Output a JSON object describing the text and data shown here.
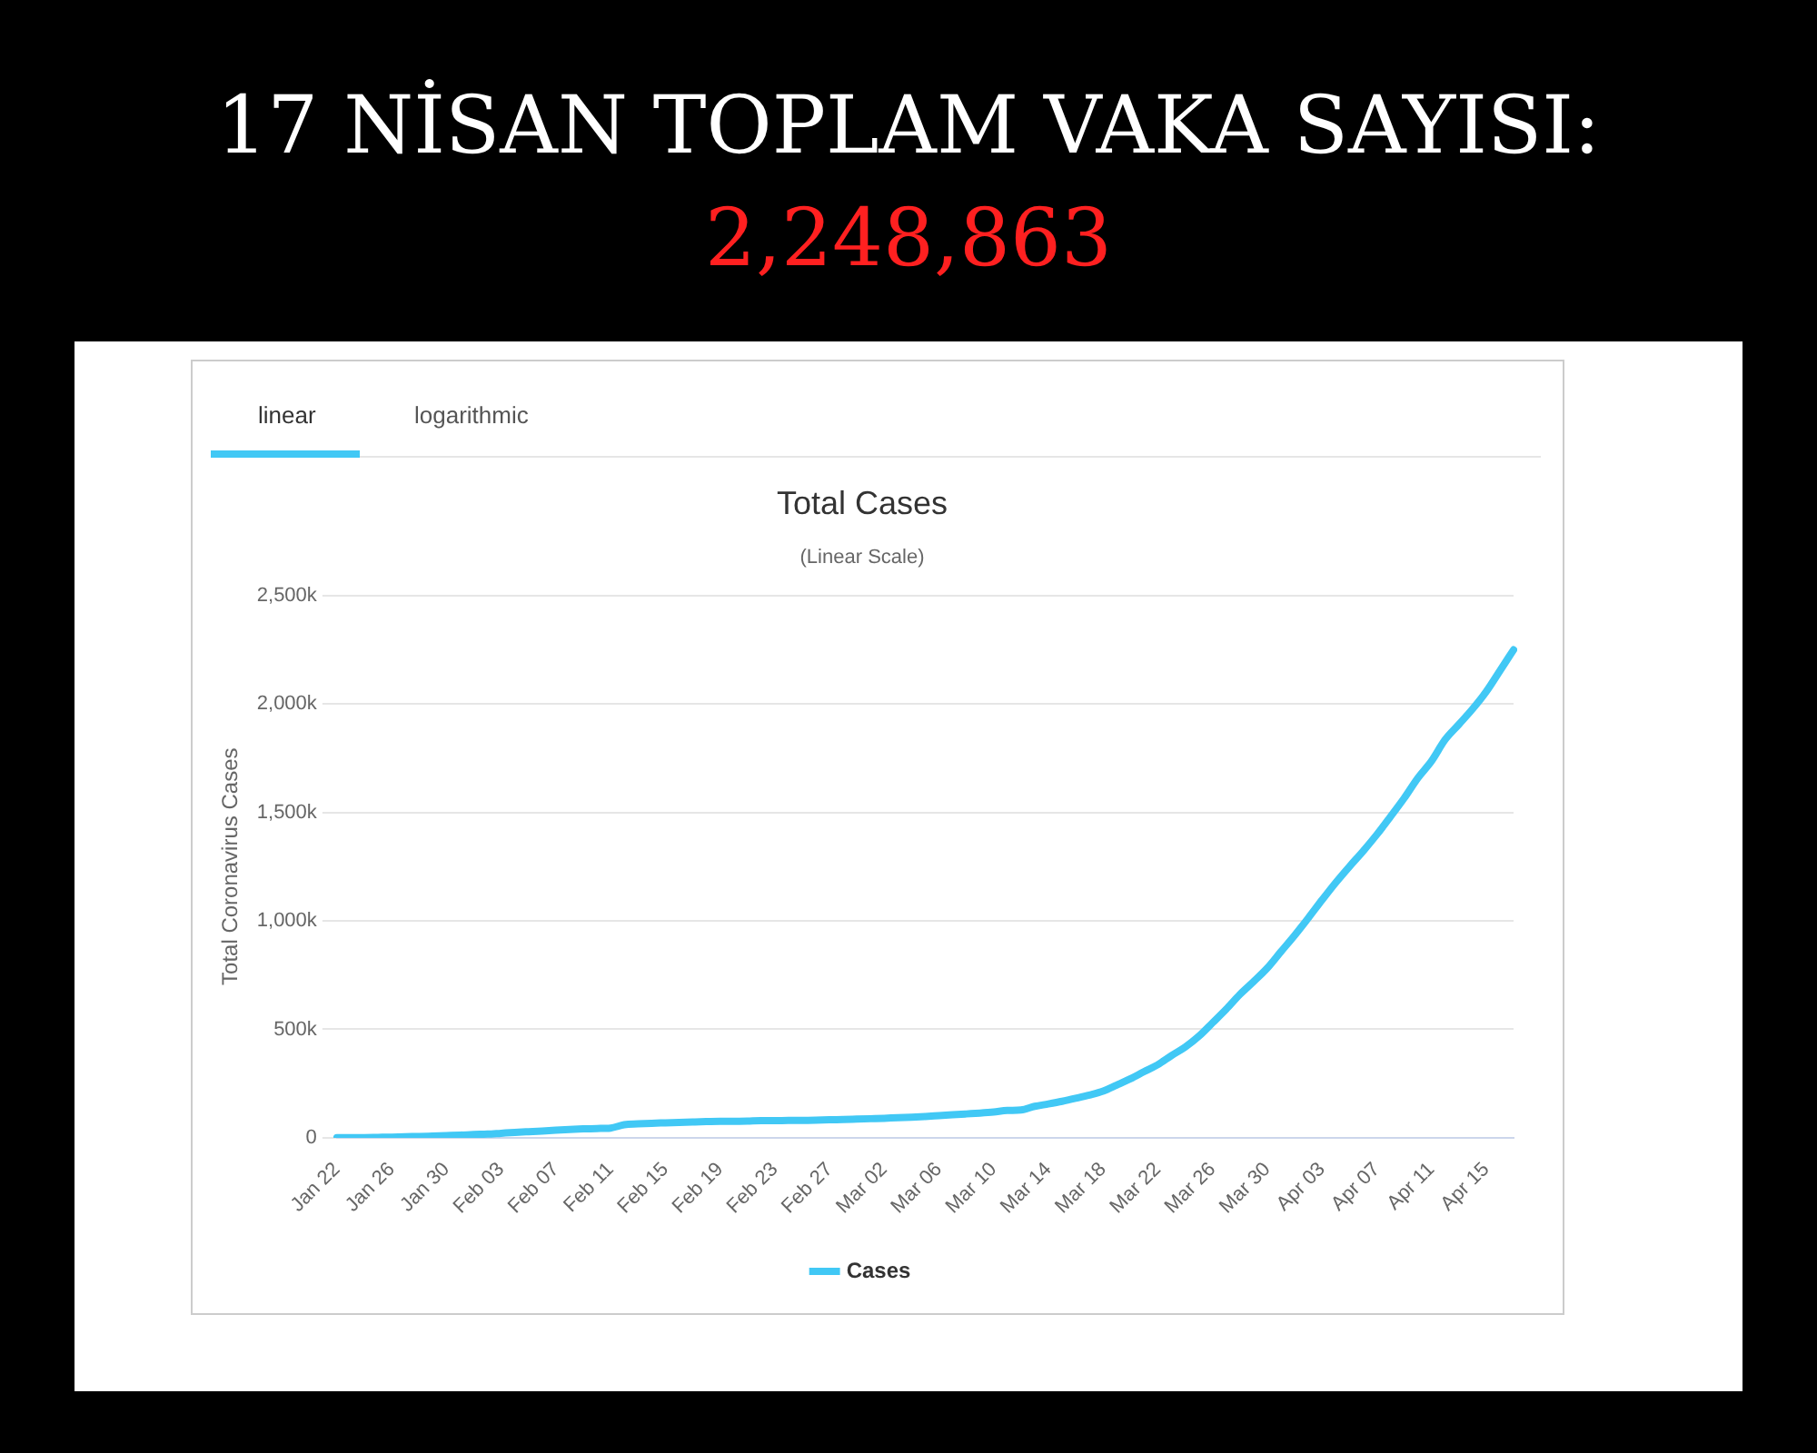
{
  "chart_data": {
    "type": "line",
    "title": "Total Cases",
    "subtitle": "(Linear Scale)",
    "ylabel": "Total Coronavirus Cases",
    "annotations": [
      "17 NİSAN TOPLAM VAKA SAYISI:",
      "2,248,863",
      "linear",
      "logarithmic"
    ],
    "categories": [
      "Jan 22",
      null,
      null,
      null,
      "Jan 26",
      null,
      null,
      null,
      "Jan 30",
      null,
      null,
      null,
      "Feb 03",
      null,
      null,
      null,
      "Feb 07",
      null,
      null,
      null,
      "Feb 11",
      null,
      null,
      null,
      "Feb 15",
      null,
      null,
      null,
      "Feb 19",
      null,
      null,
      null,
      "Feb 23",
      null,
      null,
      null,
      "Feb 27",
      null,
      null,
      null,
      "Mar 02",
      null,
      null,
      null,
      "Mar 06",
      null,
      null,
      null,
      "Mar 10",
      null,
      null,
      null,
      "Mar 14",
      null,
      null,
      null,
      "Mar 18",
      null,
      null,
      null,
      "Mar 22",
      null,
      null,
      null,
      "Mar 26",
      null,
      null,
      null,
      "Mar 30",
      null,
      null,
      null,
      "Apr 03",
      null,
      null,
      null,
      "Apr 07",
      null,
      null,
      null,
      "Apr 11",
      null,
      null,
      null,
      "Apr 15",
      null,
      null
    ],
    "series": [
      {
        "name": "Cases",
        "color": "#41c8f5",
        "values": [
          1000,
          1000,
          1000,
          2000,
          3000,
          5000,
          6000,
          8000,
          10000,
          12000,
          15000,
          17000,
          21000,
          25000,
          28000,
          31000,
          35000,
          38000,
          41000,
          43000,
          45000,
          60000,
          64000,
          67000,
          69000,
          71000,
          73000,
          75000,
          76000,
          76000,
          77000,
          79000,
          79000,
          80000,
          80000,
          81000,
          83000,
          84000,
          86000,
          88000,
          90000,
          93000,
          95000,
          98000,
          102000,
          106000,
          110000,
          114000,
          119000,
          126000,
          128000,
          145000,
          156000,
          168000,
          182000,
          197000,
          215000,
          243000,
          272000,
          305000,
          337000,
          379000,
          418000,
          468000,
          530000,
          593000,
          661000,
          720000,
          782000,
          858000,
          933000,
          1013000,
          1096000,
          1176000,
          1250000,
          1321000,
          1397000,
          1480000,
          1565000,
          1658000,
          1736000,
          1835000,
          1905000,
          1976000,
          2056000,
          2152000,
          2249000
        ]
      }
    ],
    "ylim": [
      0,
      2500000
    ],
    "yticks": [
      0,
      {
        "value": 500000,
        "label": "500k"
      },
      {
        "value": 1000000,
        "label": "1,000k"
      },
      {
        "value": 1500000,
        "label": "1,500k"
      },
      {
        "value": 2000000,
        "label": "2,000k"
      },
      {
        "value": 2500000,
        "label": "2,500k"
      }
    ],
    "grid": "y",
    "legend": "bottom",
    "marker": "none",
    "line_style": "solid"
  }
}
